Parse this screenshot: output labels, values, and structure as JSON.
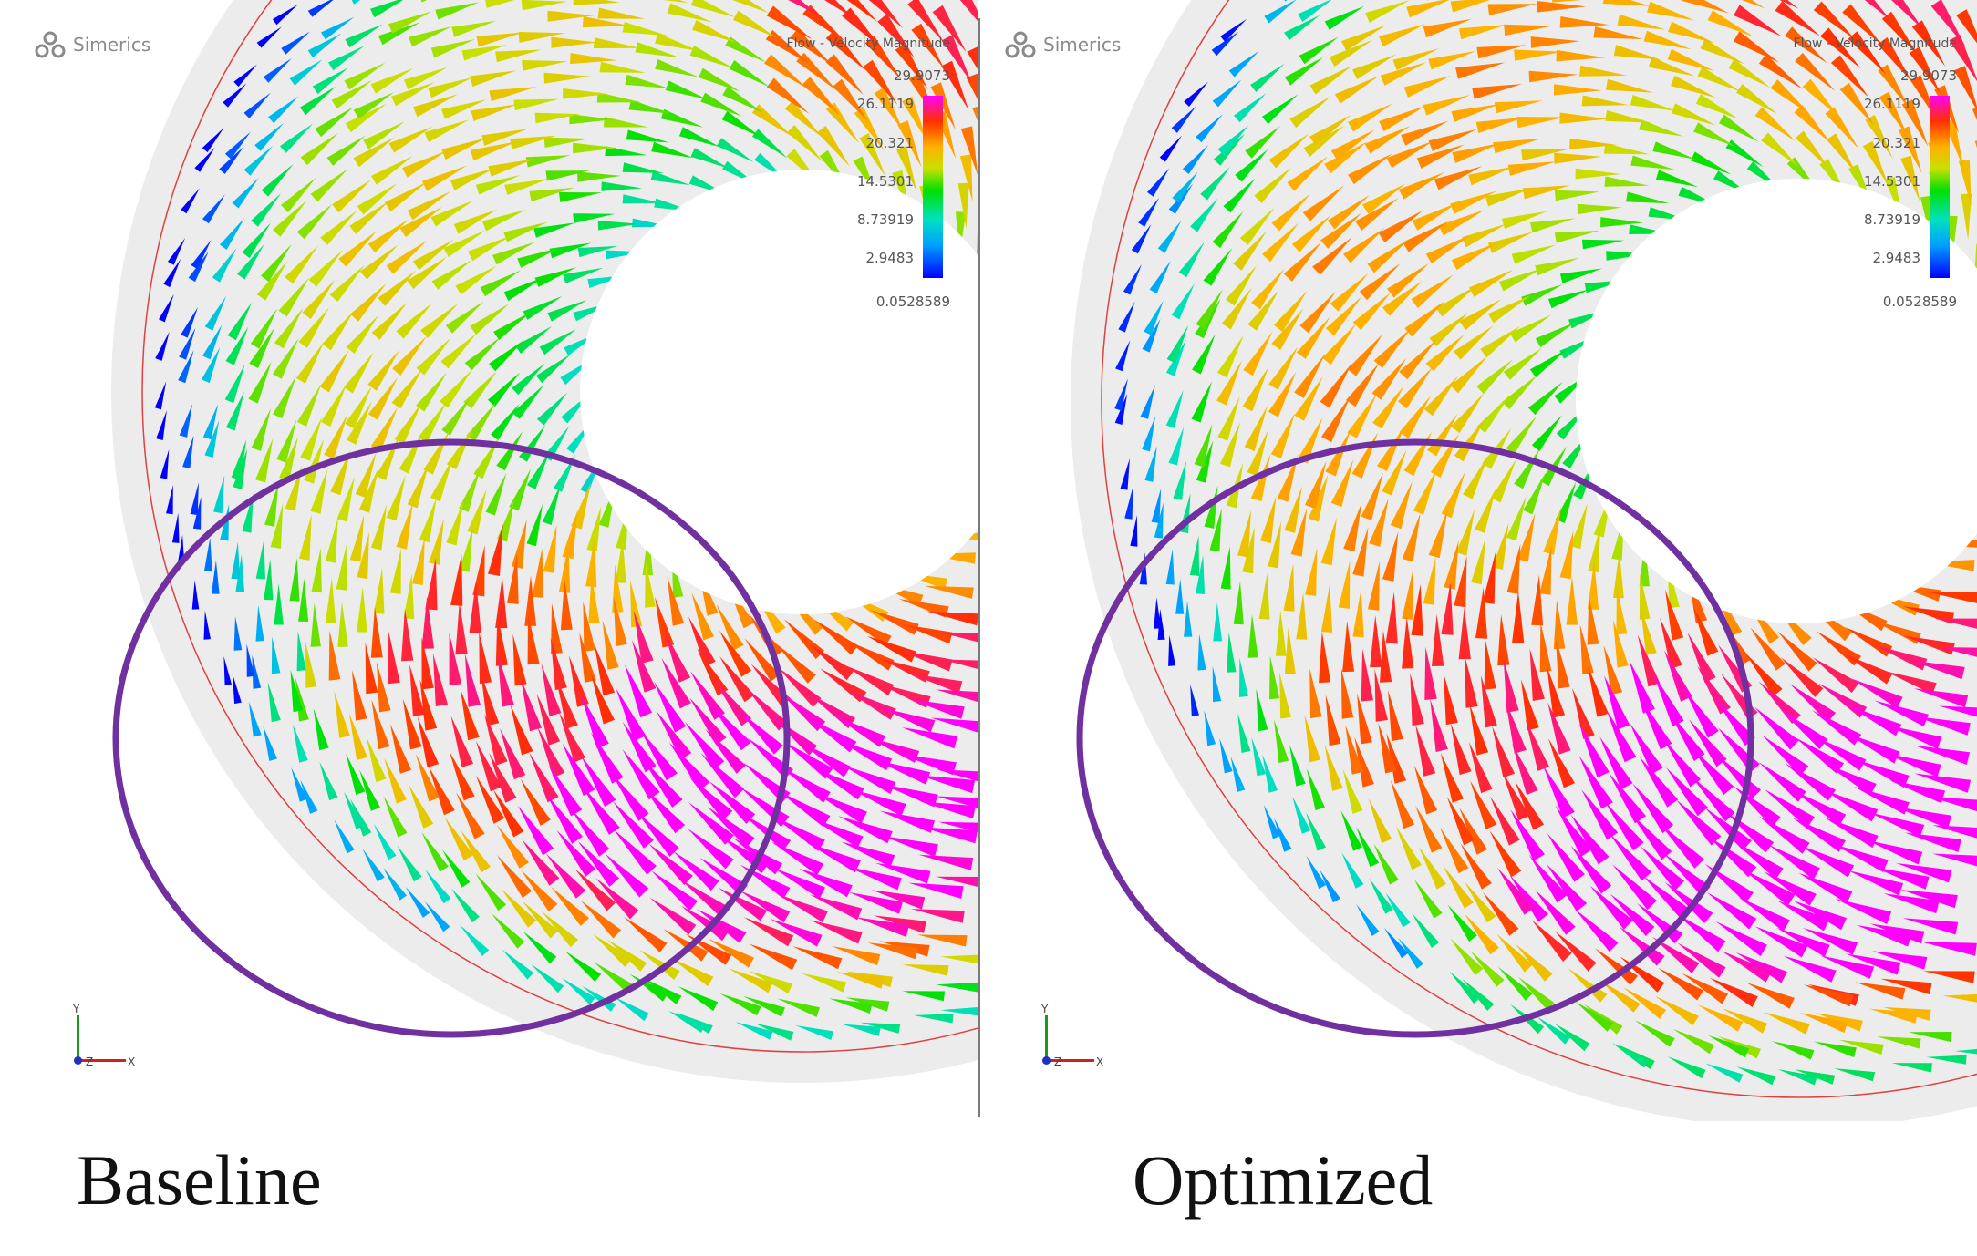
{
  "brand": {
    "name": "Simerics"
  },
  "legend": {
    "title": "Flow - Velocity Magnitude",
    "max": "29.9073",
    "ticks": [
      "26.1119",
      "20.321",
      "14.5301",
      "8.73919",
      "2.9483"
    ],
    "min": "0.0528589"
  },
  "axes": {
    "y": "Y",
    "x": "X",
    "z": "Z"
  },
  "panels": [
    {
      "caption": "Baseline"
    },
    {
      "caption": "Optimized"
    }
  ],
  "colors": {
    "highlight_circle": "#7030a0",
    "scale": [
      "#0000ff",
      "#00a0ff",
      "#00e0c0",
      "#00e000",
      "#c8e000",
      "#ffb000",
      "#ff3000",
      "#ff00ff"
    ]
  }
}
